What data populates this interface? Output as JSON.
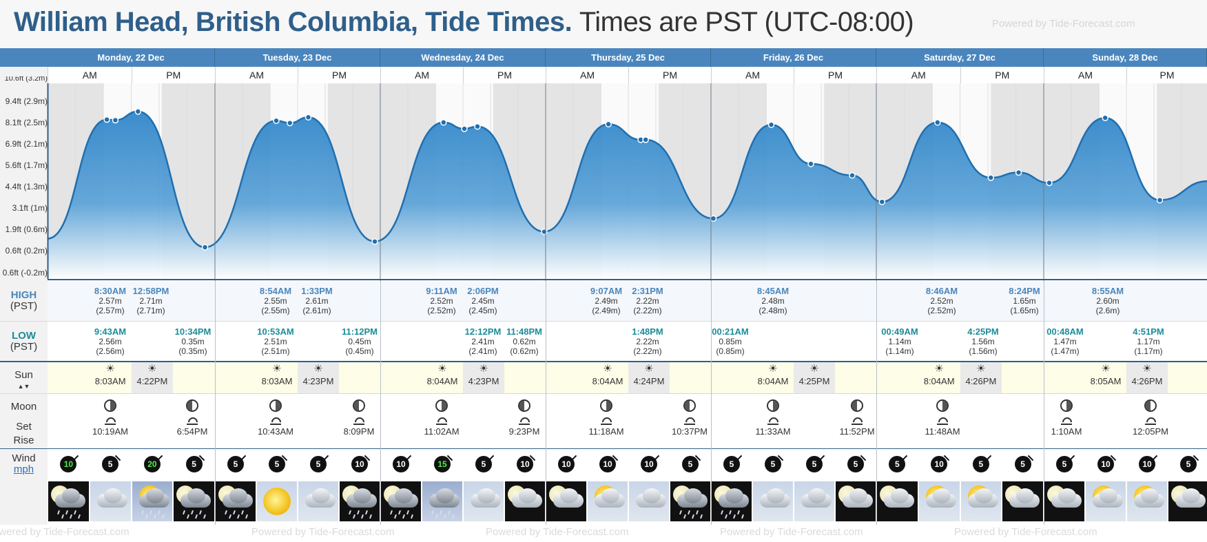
{
  "header": {
    "title": "William Head, British Columbia, Tide Times.",
    "timezone": "Times are PST (UTC-08:00)",
    "powered_by": "Powered by Tide-Forecast.com"
  },
  "footer": {
    "watermark": "Powered by Tide-Forecast.com"
  },
  "days": [
    "Monday, 22 Dec",
    "Tuesday, 23 Dec",
    "Wednesday, 24 Dec",
    "Thursday, 25 Dec",
    "Friday, 26 Dec",
    "Saturday, 27 Dec",
    "Sunday, 28 Dec"
  ],
  "ampm": [
    "AM",
    "PM"
  ],
  "yaxis": {
    "top_cut": "10.6ft (3.2m)",
    "ticks": [
      "9.4ft (2.9m)",
      "8.1ft (2.5m)",
      "6.9ft (2.1m)",
      "5.6ft (1.7m)",
      "4.4ft (1.3m)",
      "3.1ft (1m)",
      "1.9ft (0.6m)",
      "0.6ft (0.2m)",
      "0.6ft (-0.2m)"
    ]
  },
  "labels": {
    "high": "HIGH",
    "high_tz": "(PST)",
    "low": "LOW",
    "low_tz": "(PST)",
    "sun": "Sun",
    "sun_arrows": "▲▼",
    "moon": "Moon",
    "moon_set": "Set",
    "moon_rise": "Rise",
    "wind": "Wind",
    "wind_unit": "mph"
  },
  "tides_high": [
    {
      "time": "8:30AM",
      "m": "2.57m",
      "mp": "(2.57m)"
    },
    {
      "time": "12:58PM",
      "m": "2.71m",
      "mp": "(2.71m)"
    },
    {
      "time": "8:54AM",
      "m": "2.55m",
      "mp": "(2.55m)"
    },
    {
      "time": "1:33PM",
      "m": "2.61m",
      "mp": "(2.61m)"
    },
    {
      "time": "9:11AM",
      "m": "2.52m",
      "mp": "(2.52m)"
    },
    {
      "time": "2:06PM",
      "m": "2.45m",
      "mp": "(2.45m)"
    },
    {
      "time": "9:07AM",
      "m": "2.49m",
      "mp": "(2.49m)"
    },
    {
      "time": "2:31PM",
      "m": "2.22m",
      "mp": "(2.22m)"
    },
    {
      "time": "8:45AM",
      "m": "2.48m",
      "mp": "(2.48m)"
    },
    {
      "time": "8:46AM",
      "m": "2.52m",
      "mp": "(2.52m)"
    },
    {
      "time": "8:24PM",
      "m": "1.65m",
      "mp": "(1.65m)"
    },
    {
      "time": "8:55AM",
      "m": "2.60m",
      "mp": "(2.6m)"
    }
  ],
  "tides_low": [
    {
      "time": "9:43AM",
      "m": "2.56m",
      "mp": "(2.56m)"
    },
    {
      "time": "10:34PM",
      "m": "0.35m",
      "mp": "(0.35m)"
    },
    {
      "time": "10:53AM",
      "m": "2.51m",
      "mp": "(2.51m)"
    },
    {
      "time": "11:12PM",
      "m": "0.45m",
      "mp": "(0.45m)"
    },
    {
      "time": "12:12PM",
      "m": "2.41m",
      "mp": "(2.41m)"
    },
    {
      "time": "11:48PM",
      "m": "0.62m",
      "mp": "(0.62m)"
    },
    {
      "time": "1:48PM",
      "m": "2.22m",
      "mp": "(2.22m)"
    },
    {
      "time": "00:21AM",
      "m": "0.85m",
      "mp": "(0.85m)"
    },
    {
      "time": "00:49AM",
      "m": "1.14m",
      "mp": "(1.14m)"
    },
    {
      "time": "4:25PM",
      "m": "1.56m",
      "mp": "(1.56m)"
    },
    {
      "time": "00:48AM",
      "m": "1.47m",
      "mp": "(1.47m)"
    },
    {
      "time": "4:51PM",
      "m": "1.17m",
      "mp": "(1.17m)"
    }
  ],
  "sun": [
    {
      "rise": "8:03AM",
      "set": "4:22PM"
    },
    {
      "rise": "8:03AM",
      "set": "4:23PM"
    },
    {
      "rise": "8:04AM",
      "set": "4:23PM"
    },
    {
      "rise": "8:04AM",
      "set": "4:24PM"
    },
    {
      "rise": "8:04AM",
      "set": "4:25PM"
    },
    {
      "rise": "8:04AM",
      "set": "4:26PM"
    },
    {
      "rise": "8:05AM",
      "set": "4:26PM"
    }
  ],
  "moon": [
    "10:19AM",
    "6:54PM",
    "10:43AM",
    "8:09PM",
    "11:02AM",
    "9:23PM",
    "11:18AM",
    "10:37PM",
    "11:33AM",
    "11:52PM",
    "11:48AM",
    "1:10AM",
    "12:05PM"
  ],
  "wind": [
    "10",
    "5",
    "20",
    "5",
    "5",
    "5",
    "5",
    "10",
    "10",
    "15",
    "5",
    "10",
    "10",
    "10",
    "10",
    "5",
    "5",
    "5",
    "5",
    "5",
    "5",
    "10",
    "5",
    "5",
    "5",
    "10",
    "10",
    "5"
  ],
  "weather": [
    "night-rain",
    "day-cloud",
    "day-sun-rain",
    "night-rain",
    "night-rain",
    "day-sun",
    "day-cloud",
    "night-rain",
    "night-rain",
    "day-rain",
    "day-cloud",
    "night-moon-cloud",
    "night-moon-cloud",
    "day-sun-cloud",
    "day-cloud",
    "night-rain",
    "night-rain",
    "day-cloud",
    "day-cloud",
    "night-moon-cloud",
    "night-moon-cloud",
    "day-sun-cloud",
    "day-sun-cloud",
    "night-moon-cloud",
    "night-moon-cloud",
    "day-sun-cloud",
    "day-sun-cloud",
    "night-moon-cloud"
  ],
  "colors": {
    "header_blue": "#4a86bd",
    "title": "#2f5f8a",
    "tide_fill": "#3b8fd0",
    "high_text": "#4a86bd",
    "low_text": "#1c8c98",
    "sun_row": "#fdfde8"
  }
}
